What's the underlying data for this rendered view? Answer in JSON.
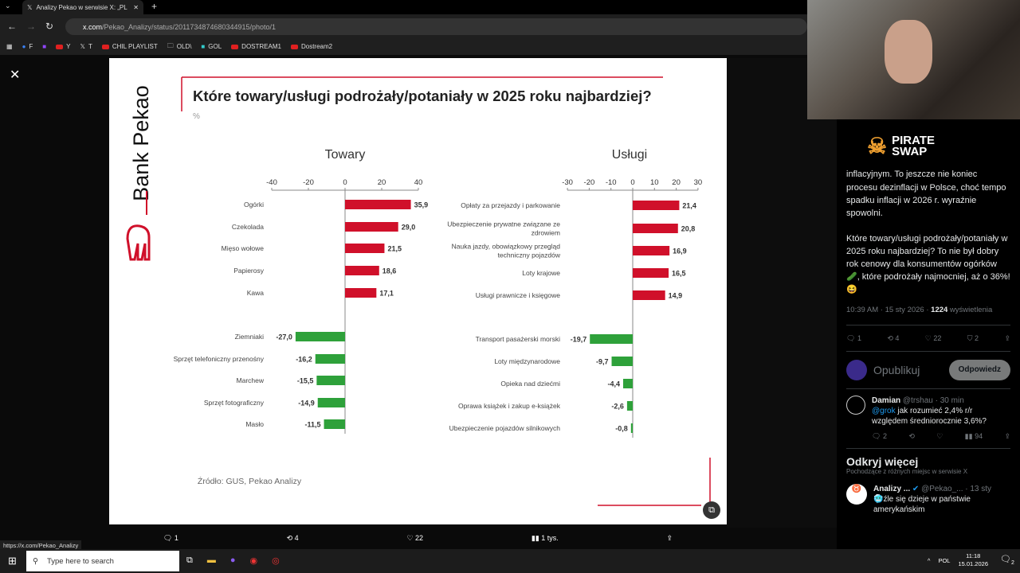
{
  "browser": {
    "tab_title": "Analizy Pekao w serwisie X: „PL",
    "url_host": "x.com",
    "url_path": "/Pekao_Analizy/status/2011734874680344915/photo/1",
    "bookmarks": [
      "F",
      "",
      "Y",
      "T",
      "CHIL PLAYLIST",
      "OLD\\",
      "GOL",
      "DOSTREAM1",
      "Dostream2"
    ],
    "status_url": "https://x.com/Pekao_Analizy"
  },
  "viewer": {
    "actions": {
      "replies": "1",
      "reposts": "4",
      "likes": "22",
      "views": "1 tys."
    }
  },
  "slide": {
    "brand": "Bank Pekao",
    "source": "Źródło: GUS, Pekao Analizy"
  },
  "chart_data": [
    {
      "type": "bar",
      "orientation": "horizontal",
      "title": "Które towary/usługi podrożały/potaniały w 2025 roku najbardziej?",
      "unit": "%",
      "subtitle": "Towary",
      "xlim": [
        -40,
        40
      ],
      "ticks": [
        -40,
        -20,
        0,
        20,
        40
      ],
      "categories": [
        "Ogórki",
        "Czekolada",
        "Mięso wołowe",
        "Papierosy",
        "Kawa",
        "Ziemniaki",
        "Sprzęt telefoniczny przenośny",
        "Marchew",
        "Sprzęt fotograficzny",
        "Masło"
      ],
      "values": [
        35.9,
        29.0,
        21.5,
        18.6,
        17.1,
        -27.0,
        -16.2,
        -15.5,
        -14.9,
        -11.5
      ],
      "labels": [
        "35,9",
        "29,0",
        "21,5",
        "18,6",
        "17,1",
        "-27,0",
        "-16,2",
        "-15,5",
        "-14,9",
        "-11,5"
      ],
      "colors": {
        "positive": "#d0102a",
        "negative": "#2ea13a"
      }
    },
    {
      "type": "bar",
      "orientation": "horizontal",
      "subtitle": "Usługi",
      "xlim": [
        -30,
        30
      ],
      "ticks": [
        -30,
        -20,
        -10,
        0,
        10,
        20,
        30
      ],
      "categories": [
        "Opłaty za przejazdy i parkowanie",
        "Ubezpieczenie prywatne związane ze zdrowiem",
        "Nauka jazdy, obowiązkowy przegląd techniczny pojazdów",
        "Loty krajowe",
        "Usługi prawnicze i księgowe",
        "Transport pasażerski morski",
        "Loty międzynarodowe",
        "Opieka nad dziećmi",
        "Oprawa książek i zakup e-książek",
        "Ubezpieczenie pojazdów silnikowych"
      ],
      "values": [
        21.4,
        20.8,
        16.9,
        16.5,
        14.9,
        -19.7,
        -9.7,
        -4.4,
        -2.6,
        -0.8
      ],
      "labels": [
        "21,4",
        "20,8",
        "16,9",
        "16,5",
        "14,9",
        "-19,7",
        "-9,7",
        "-4,4",
        "-2,6",
        "-0,8"
      ],
      "colors": {
        "positive": "#d0102a",
        "negative": "#2ea13a"
      }
    }
  ],
  "stream": {
    "logo_line1": "PIRATE",
    "logo_line2": "SWAP"
  },
  "tweet": {
    "text_partial_top": "inflacyjnym. To jeszcze nie koniec",
    "text1": "procesu dezinflacji w Polsce, choć tempo spadku inflacji w 2026 r. wyraźnie spowolni.",
    "text2": "Które towary/usługi podrożały/potaniały w 2025 roku najbardziej? To nie był dobry rok cenowy dla konsumentów ogórków 🥒, które podrożały najmocniej, aż o 36%! 😆",
    "time": "10:39 AM · 15 sty 2026 · ",
    "views": "1224",
    "views_label": " wyświetlenia",
    "replies": "1",
    "reposts": "4",
    "likes": "22",
    "bookmarks": "2",
    "compose_placeholder": "Opublikuj",
    "reply_button": "Odpowiedz"
  },
  "reply": {
    "name": "Damian",
    "handle": "@trshau · 30 min",
    "mention": "@grok",
    "text": " jak rozumieć 2,4% r/r względem średniorocznie 3,6%?",
    "replies": "2",
    "views": "94"
  },
  "discover": {
    "title": "Odkryj więcej",
    "subtitle": "Pochodzące z różnych miejsc w serwisie X",
    "name": "Analizy ...",
    "handle": "@Pekao_... · 13 sty",
    "text": "🥶źle się dzieje w państwie amerykańskim"
  },
  "taskbar": {
    "search_placeholder": "Type here to search",
    "lang": "POL",
    "time": "11:18",
    "date": "15.01.2026",
    "notifications": "2"
  }
}
